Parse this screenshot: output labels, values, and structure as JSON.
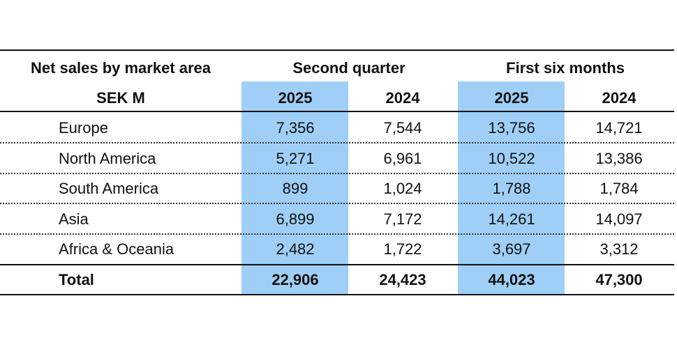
{
  "header": {
    "title": "Net sales by market area",
    "unit": "SEK M",
    "groups": [
      "Second quarter",
      "First six months"
    ],
    "years": [
      "2025",
      "2024",
      "2025",
      "2024"
    ]
  },
  "table": {
    "rows": [
      {
        "label": "Europe",
        "values": [
          "7,356",
          "7,544",
          "13,756",
          "14,721"
        ]
      },
      {
        "label": "North America",
        "values": [
          "5,271",
          "6,961",
          "10,522",
          "13,386"
        ]
      },
      {
        "label": "South America",
        "values": [
          "899",
          "1,024",
          "1,788",
          "1,784"
        ]
      },
      {
        "label": "Asia",
        "values": [
          "6,899",
          "7,172",
          "14,261",
          "14,097"
        ]
      },
      {
        "label": "Africa & Oceania",
        "values": [
          "2,482",
          "1,722",
          "3,697",
          "3,312"
        ]
      }
    ],
    "total": {
      "label": "Total",
      "values": [
        "22,906",
        "24,423",
        "44,023",
        "47,300"
      ]
    }
  }
}
